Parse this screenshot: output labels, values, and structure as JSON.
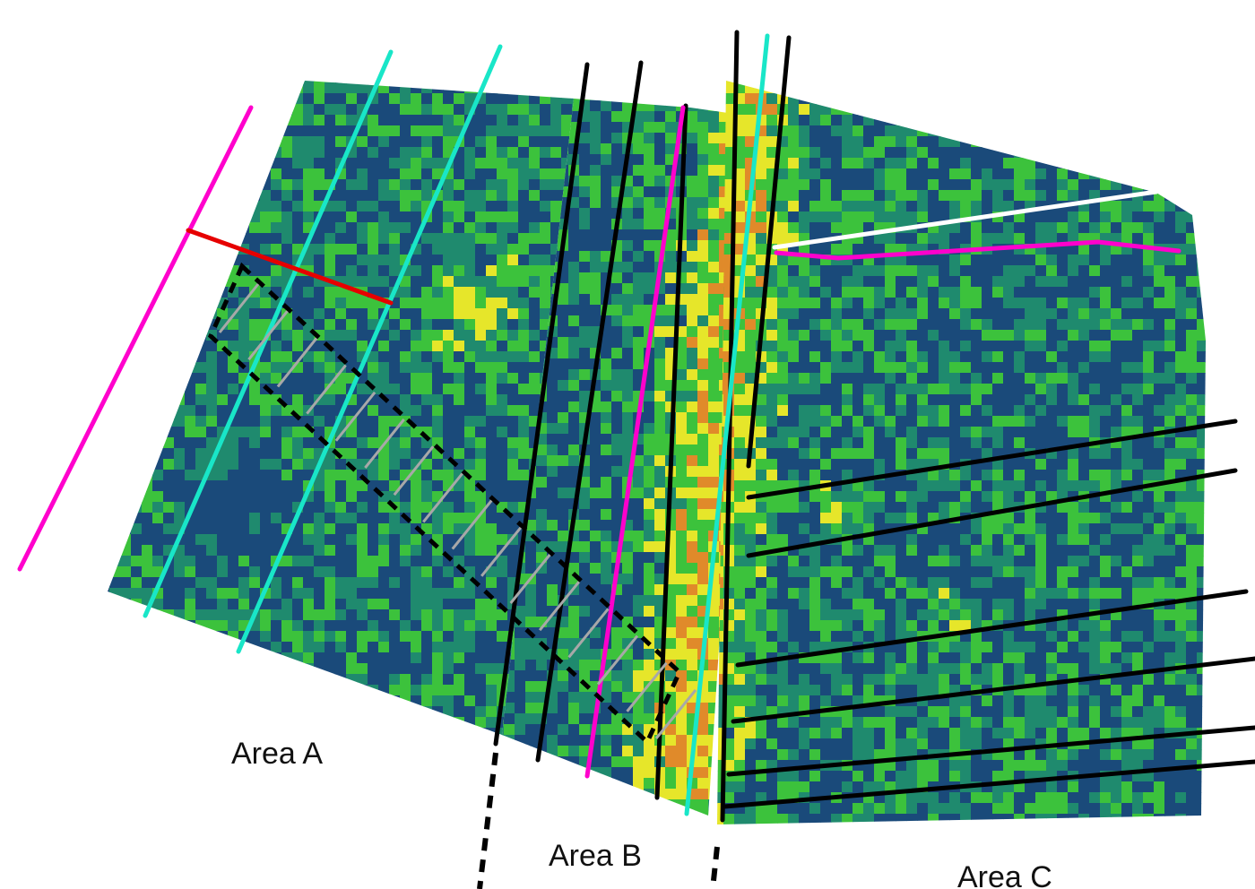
{
  "areas": [
    {
      "label": "Area A"
    },
    {
      "label": "Area B"
    },
    {
      "label": "Area C"
    }
  ],
  "colors": {
    "background": "#ffffff",
    "field_low": "#1a4a7a",
    "field_mid": "#1f8a6e",
    "field_green": "#3cc23c",
    "field_yellow": "#e6e62a",
    "field_high": "#e08a2a",
    "boundary": "#000000",
    "magenta_line": "#ff00cc",
    "cyan_line": "#19e6c8",
    "red_line": "#e60000",
    "white_line": "#ffffff",
    "hatch": "#a8a8a8"
  }
}
